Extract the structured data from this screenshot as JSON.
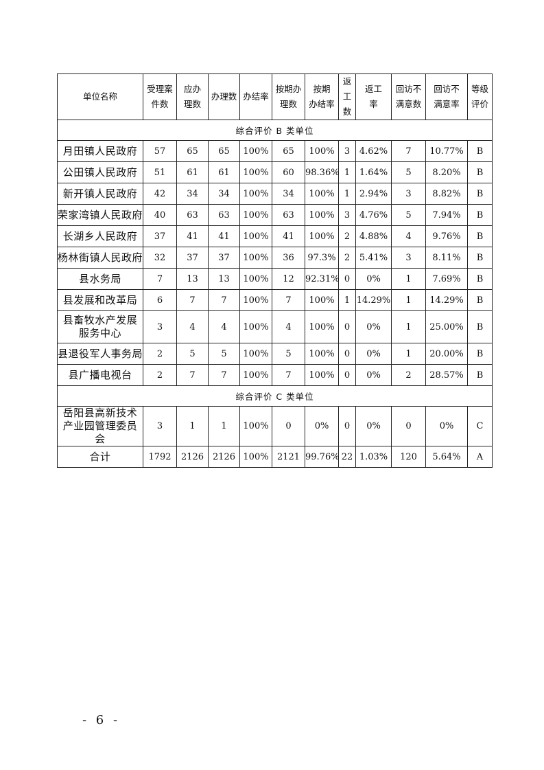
{
  "table": {
    "headers": [
      "单位名称",
      "受理案件数",
      "应办理数",
      "办理数",
      "办结率",
      "按期办理数",
      "按期办结率",
      "返工数",
      "返工率",
      "回访不满意数",
      "回访不满意率",
      "等级评价"
    ],
    "header_lines": [
      [
        "单位名称"
      ],
      [
        "受理案",
        "件数"
      ],
      [
        "应办",
        "理数"
      ],
      [
        "办理数"
      ],
      [
        "办结率"
      ],
      [
        "按期办",
        "理数"
      ],
      [
        "按期",
        "办结率"
      ],
      [
        "返工",
        "数"
      ],
      [
        "返工",
        "率"
      ],
      [
        "回访不",
        "满意数"
      ],
      [
        "回访不",
        "满意率"
      ],
      [
        "等级",
        "评价"
      ]
    ],
    "sections": [
      {
        "title": "综合评价 B 类单位",
        "rows": [
          [
            "月田镇人民政府",
            "57",
            "65",
            "65",
            "100%",
            "65",
            "100%",
            "3",
            "4.62%",
            "7",
            "10.77%",
            "B"
          ],
          [
            "公田镇人民政府",
            "51",
            "61",
            "61",
            "100%",
            "60",
            "98.36%",
            "1",
            "1.64%",
            "5",
            "8.20%",
            "B"
          ],
          [
            "新开镇人民政府",
            "42",
            "34",
            "34",
            "100%",
            "34",
            "100%",
            "1",
            "2.94%",
            "3",
            "8.82%",
            "B"
          ],
          [
            "荣家湾镇人民政府",
            "40",
            "63",
            "63",
            "100%",
            "63",
            "100%",
            "3",
            "4.76%",
            "5",
            "7.94%",
            "B"
          ],
          [
            "长湖乡人民政府",
            "37",
            "41",
            "41",
            "100%",
            "41",
            "100%",
            "2",
            "4.88%",
            "4",
            "9.76%",
            "B"
          ],
          [
            "杨林街镇人民政府",
            "32",
            "37",
            "37",
            "100%",
            "36",
            "97.3%",
            "2",
            "5.41%",
            "3",
            "8.11%",
            "B"
          ],
          [
            "县水务局",
            "7",
            "13",
            "13",
            "100%",
            "12",
            "92.31%",
            "0",
            "0%",
            "1",
            "7.69%",
            "B"
          ],
          [
            "县发展和改革局",
            "6",
            "7",
            "7",
            "100%",
            "7",
            "100%",
            "1",
            "14.29%",
            "1",
            "14.29%",
            "B"
          ],
          [
            "县畜牧水产发展服务中心",
            "3",
            "4",
            "4",
            "100%",
            "4",
            "100%",
            "0",
            "0%",
            "1",
            "25.00%",
            "B"
          ],
          [
            "县退役军人事务局",
            "2",
            "5",
            "5",
            "100%",
            "5",
            "100%",
            "0",
            "0%",
            "1",
            "20.00%",
            "B"
          ],
          [
            "县广播电视台",
            "2",
            "7",
            "7",
            "100%",
            "7",
            "100%",
            "0",
            "0%",
            "2",
            "28.57%",
            "B"
          ]
        ]
      },
      {
        "title": "综合评价 C 类单位",
        "rows": [
          [
            "岳阳县高新技术产业园管理委员会",
            "3",
            "1",
            "1",
            "100%",
            "0",
            "0%",
            "0",
            "0%",
            "0",
            "0%",
            "C"
          ]
        ]
      }
    ],
    "total": [
      "合计",
      "1792",
      "2126",
      "2126",
      "100%",
      "2121",
      "99.76%",
      "22",
      "1.03%",
      "120",
      "5.64%",
      "A"
    ]
  },
  "page_number": "- 6 -"
}
